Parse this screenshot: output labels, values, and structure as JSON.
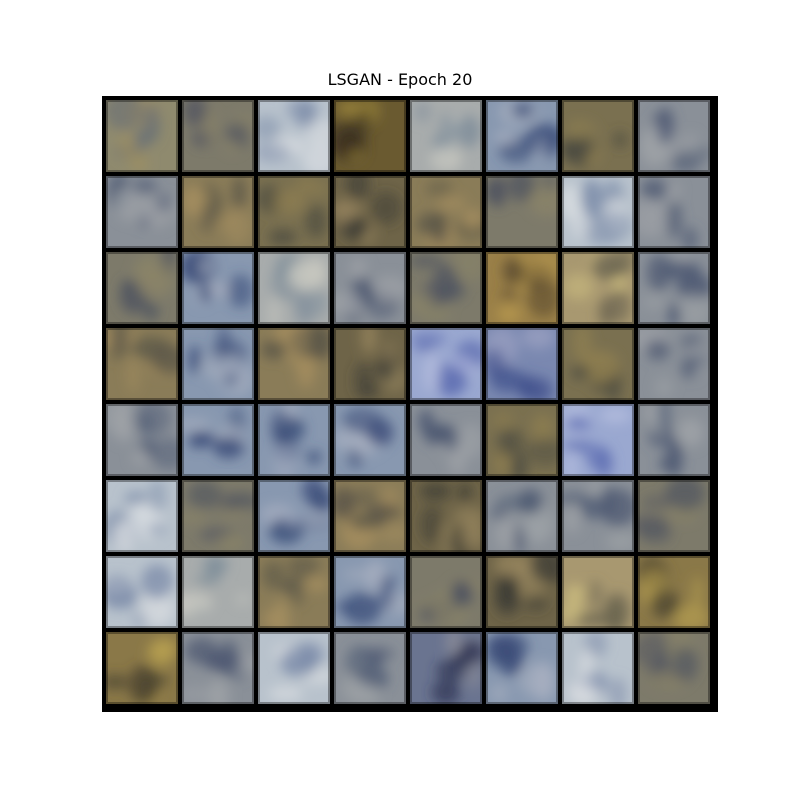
{
  "figure": {
    "title": "LSGAN - Epoch 20"
  },
  "samples": {
    "rows": 8,
    "cols": 8,
    "tiles": [
      [
        "olive-blue",
        "grey-olive",
        "blue-white",
        "dark-gold",
        "grey-white",
        "blue-grey",
        "olive",
        "grey-blue"
      ],
      [
        "grey-blue",
        "olive-tan",
        "olive",
        "olive-dark",
        "olive-tan",
        "grey-olive",
        "blue-white",
        "grey-blue"
      ],
      [
        "grey-olive",
        "blue-grey",
        "grey-white",
        "grey-blue",
        "grey-olive",
        "gold",
        "tan-gold",
        "grey-blue"
      ],
      [
        "olive-tan",
        "blue-grey",
        "olive-tan",
        "olive-dark",
        "blue-light",
        "blue",
        "olive",
        "grey-blue"
      ],
      [
        "grey-blue",
        "blue-grey",
        "blue-grey",
        "blue-grey",
        "grey-blue",
        "olive",
        "blue-light",
        "grey-blue"
      ],
      [
        "blue-white",
        "grey-olive",
        "blue-grey",
        "olive-tan",
        "olive-dark",
        "grey-blue",
        "grey-blue",
        "grey-olive"
      ],
      [
        "blue-white",
        "grey-white",
        "olive-tan",
        "blue-grey",
        "grey-olive",
        "olive-dark",
        "tan-gold",
        "olive-gold"
      ],
      [
        "olive-gold",
        "grey-blue",
        "blue-white",
        "grey-blue",
        "blue-dark",
        "blue-grey",
        "blue-white",
        "grey-olive"
      ]
    ],
    "palette": {
      "olive-blue": [
        "#8f8a6e",
        "#5f6878",
        "#a09060"
      ],
      "grey-olive": [
        "#7d7a6a",
        "#4d5260",
        "#8a8468"
      ],
      "blue-white": [
        "#b8c2cc",
        "#7a8aa8",
        "#d8dce0"
      ],
      "dark-gold": [
        "#6a5a30",
        "#3a3020",
        "#b09840"
      ],
      "grey-white": [
        "#a8acac",
        "#7a8a98",
        "#c8c8c0"
      ],
      "blue-grey": [
        "#8898b0",
        "#3a4c78",
        "#a8b0c0"
      ],
      "olive": [
        "#7a7050",
        "#4a4a40",
        "#908050"
      ],
      "grey-blue": [
        "#8a9098",
        "#4a5670",
        "#a0a4a8"
      ],
      "olive-tan": [
        "#8a7c58",
        "#5a5648",
        "#a89060"
      ],
      "olive-dark": [
        "#6e6448",
        "#3a3a34",
        "#9a8860"
      ],
      "gold": [
        "#9a8048",
        "#5a4a30",
        "#c0a050"
      ],
      "tan-gold": [
        "#a89870",
        "#6a6450",
        "#d0c080"
      ],
      "blue-light": [
        "#9aa8d0",
        "#5a6ab0",
        "#b8c0e0"
      ],
      "blue": [
        "#7a88b0",
        "#3a4a88",
        "#9aa0c0"
      ],
      "olive-gold": [
        "#8a7848",
        "#4a4430",
        "#b8a050"
      ],
      "blue-dark": [
        "#6a7490",
        "#2a3050",
        "#8a8c98"
      ]
    }
  }
}
